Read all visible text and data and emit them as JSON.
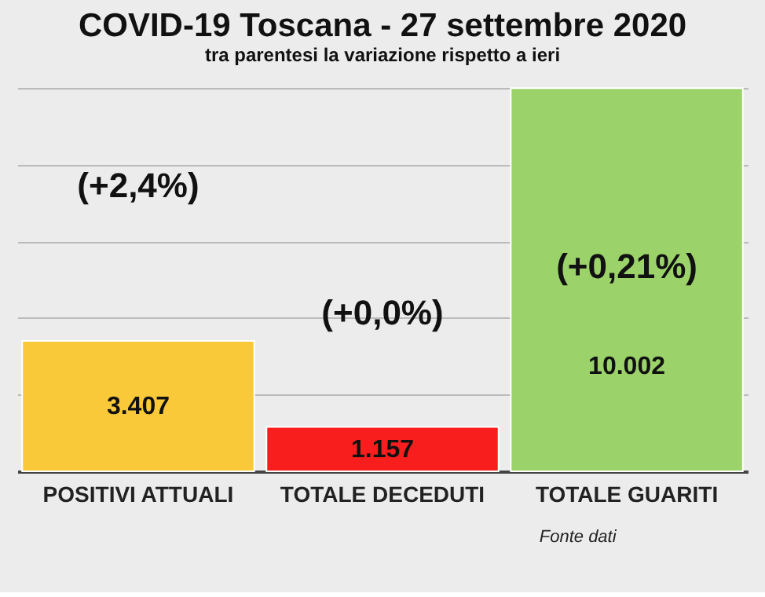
{
  "chart_data": {
    "type": "bar",
    "title": "COVID-19  Toscana - 27 settembre 2020",
    "subtitle": "tra parentesi la variazione rispetto a ieri",
    "categories": [
      "POSITIVI ATTUALI",
      "TOTALE DECEDUTI",
      "TOTALE GUARITI"
    ],
    "values": [
      3407,
      1157,
      10002
    ],
    "colors": [
      "#f9c93a",
      "#f81e1e",
      "#9bd36a"
    ],
    "value_labels": [
      "3.407",
      "1.157",
      "10.002"
    ],
    "ylim": [
      0,
      10050
    ],
    "yticks": [
      {
        "value": 0,
        "label": null
      },
      {
        "value": 2000,
        "label": null
      },
      {
        "value": 4000,
        "label": null
      },
      {
        "value": 6000,
        "label": null
      },
      {
        "value": 8000,
        "label": null
      },
      {
        "value": 10000,
        "label": null
      }
    ],
    "tick_labels": "x",
    "grid": "y",
    "annotations": [
      "(+2,4%)",
      "(+0,0%)",
      "(+0,21%)",
      "Fonte dati"
    ]
  }
}
